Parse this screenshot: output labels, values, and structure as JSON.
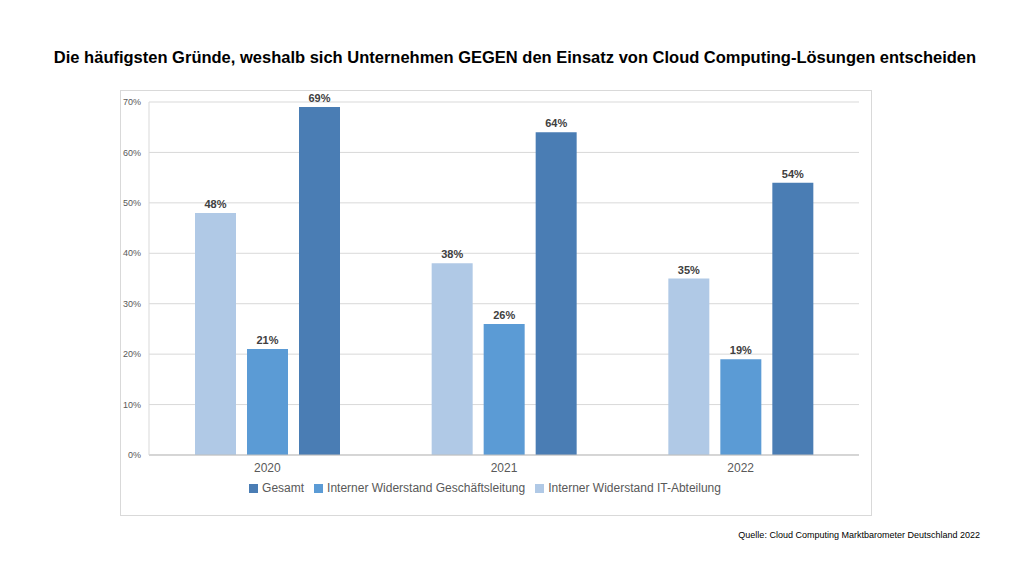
{
  "chart_data": {
    "type": "bar",
    "title": "Die häufigsten Gründe, weshalb sich Unternehmen GEGEN den Einsatz von Cloud Computing-Lösungen entscheiden",
    "source": "Quelle: Cloud Computing Marktbarometer Deutschland 2022",
    "categories": [
      "2020",
      "2021",
      "2022"
    ],
    "series": [
      {
        "name": "Interner Widerstand IT-Abteilung",
        "color": "#b0c9e6",
        "values": [
          48,
          38,
          35
        ],
        "value_labels": [
          "48%",
          "38%",
          "35%"
        ]
      },
      {
        "name": "Interner Widerstand Geschäftsleitung",
        "color": "#5b9bd5",
        "values": [
          21,
          26,
          19
        ],
        "value_labels": [
          "21%",
          "26%",
          "19%"
        ]
      },
      {
        "name": "Gesamt",
        "color": "#4a7db4",
        "values": [
          69,
          64,
          54
        ],
        "value_labels": [
          "69%",
          "64%",
          "54%"
        ]
      }
    ],
    "ylim": [
      0,
      70
    ],
    "yticks": [
      {
        "value": 0,
        "label": "0%"
      },
      {
        "value": 10,
        "label": "10%"
      },
      {
        "value": 20,
        "label": "20%"
      },
      {
        "value": 30,
        "label": "30%"
      },
      {
        "value": 40,
        "label": "40%"
      },
      {
        "value": 50,
        "label": "50%"
      },
      {
        "value": 60,
        "label": "60%"
      },
      {
        "value": 70,
        "label": "70%"
      }
    ],
    "grid": true,
    "legend": "bottom",
    "data_labels": true
  }
}
